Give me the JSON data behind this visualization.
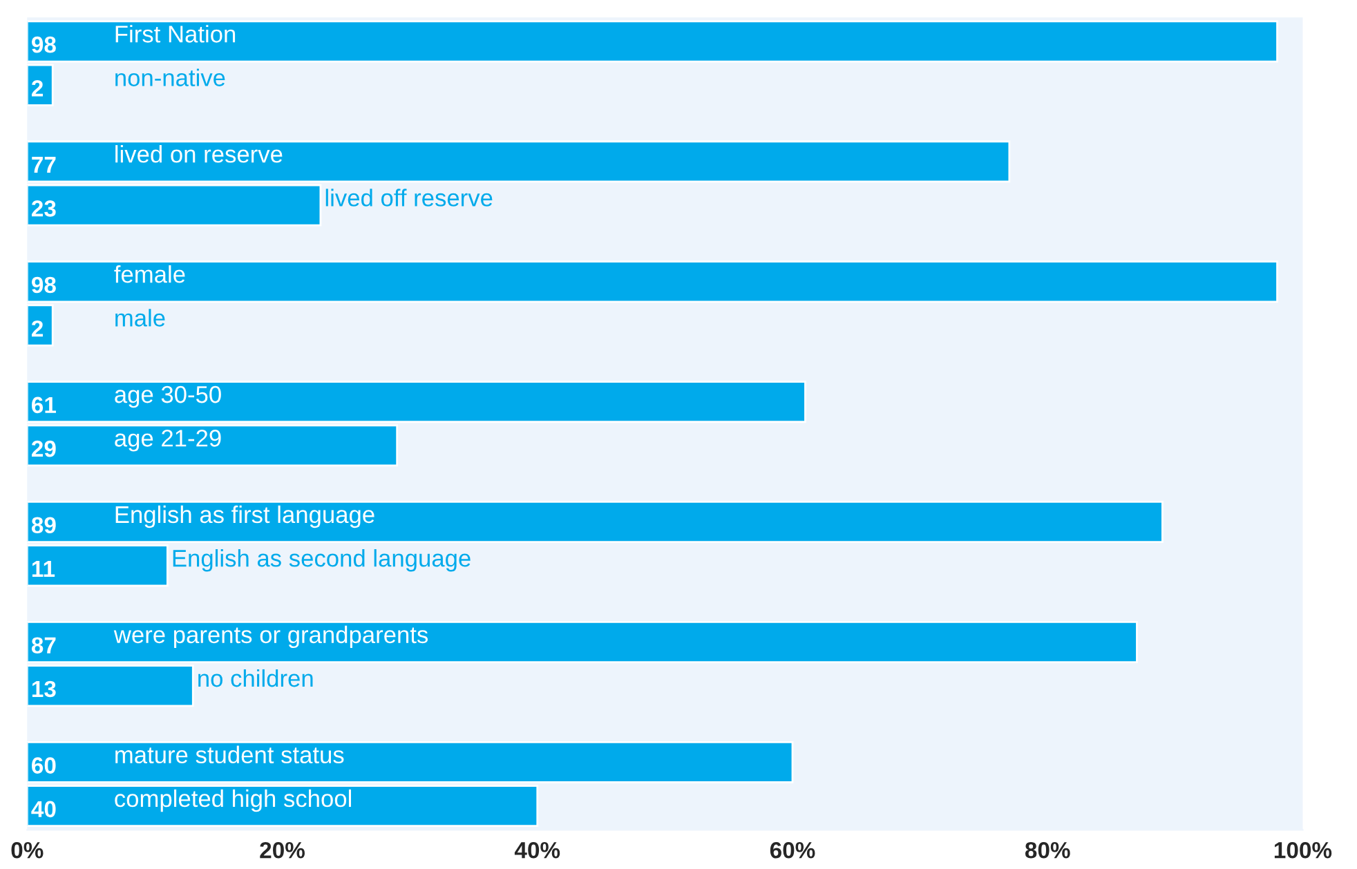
{
  "chart_data": {
    "type": "bar",
    "orientation": "horizontal",
    "categories": [
      "First Nation",
      "non-native",
      "lived on reserve",
      "lived off reserve",
      "female",
      "male",
      "age 30-50",
      "age 21-29",
      "English as first language",
      "English as second language",
      "were parents or grandparents",
      "no children",
      "mature student status",
      "completed high school"
    ],
    "values": [
      98,
      2,
      77,
      23,
      98,
      2,
      61,
      29,
      89,
      11,
      87,
      13,
      60,
      40
    ],
    "color": "#00aaeb",
    "xlim": [
      0,
      100
    ],
    "xticks": [
      {
        "value": 0,
        "label": "0%"
      },
      {
        "value": 20,
        "label": "20%"
      },
      {
        "value": 40,
        "label": "40%"
      },
      {
        "value": 60,
        "label": "60%"
      },
      {
        "value": 80,
        "label": "80%"
      },
      {
        "value": 100,
        "label": "100%"
      }
    ],
    "tick_labels": "x",
    "data_labels": true,
    "grid": false
  }
}
